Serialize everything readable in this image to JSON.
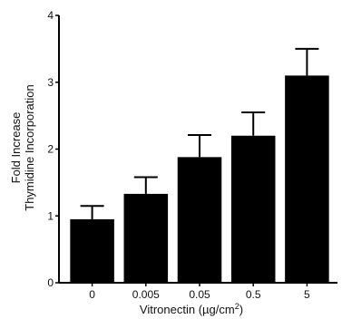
{
  "chart_data": {
    "type": "bar",
    "title": "",
    "xlabel": "Vitronectin (µg/cm2)",
    "xlabel_main": "Vitronectin (µg/cm",
    "xlabel_sup": "2",
    "xlabel_close": ")",
    "ylabel": "Fold Increase Thymidine Incorporation",
    "ylabel_line1": "Fold Increase",
    "ylabel_line2": "Thymidine Incorporation",
    "categories": [
      "0",
      "0.005",
      "0.05",
      "0.5",
      "5"
    ],
    "values": [
      0.95,
      1.33,
      1.88,
      2.2,
      3.1
    ],
    "errors": [
      0.2,
      0.25,
      0.33,
      0.35,
      0.4
    ],
    "ylim": [
      0,
      4
    ],
    "yticks": [
      "0",
      "1",
      "2",
      "3",
      "4"
    ],
    "grid": false,
    "bar_color": "#000000"
  }
}
